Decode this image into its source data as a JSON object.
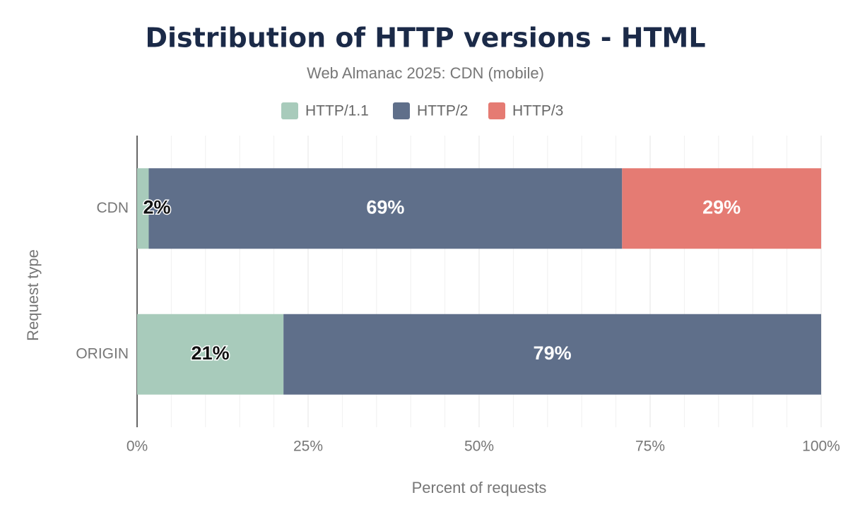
{
  "chart_data": {
    "type": "stacked_bar_horizontal",
    "title": "Distribution of HTTP versions - HTML",
    "subtitle": "Web Almanac 2025: CDN (mobile)",
    "x_label": "Percent of requests",
    "y_label": "Request type",
    "categories": [
      "CDN",
      "ORIGIN"
    ],
    "series": [
      {
        "name": "HTTP/1.1",
        "color": "#a8cbbb",
        "label_color": "#111111",
        "values": [
          1.7,
          21.4
        ],
        "value_labels": [
          "2%",
          "21%"
        ]
      },
      {
        "name": "HTTP/2",
        "color": "#5f6f8a",
        "label_color": "#ffffff",
        "values": [
          69.2,
          78.6
        ],
        "value_labels": [
          "69%",
          "79%"
        ]
      },
      {
        "name": "HTTP/3",
        "color": "#e57b73",
        "label_color": "#ffffff",
        "values": [
          29.1,
          null
        ],
        "value_labels": [
          "29%",
          null
        ]
      }
    ],
    "xlim": [
      0,
      100
    ],
    "xticks": [
      {
        "value": 0,
        "label": "0%"
      },
      {
        "value": 25,
        "label": "25%"
      },
      {
        "value": 50,
        "label": "50%"
      },
      {
        "value": 75,
        "label": "75%"
      },
      {
        "value": 100,
        "label": "100%"
      }
    ],
    "minor_xticks": [
      5,
      10,
      15,
      20,
      30,
      35,
      40,
      45,
      55,
      60,
      65,
      70,
      80,
      85,
      90,
      95
    ],
    "grid": true,
    "legend": "top"
  }
}
